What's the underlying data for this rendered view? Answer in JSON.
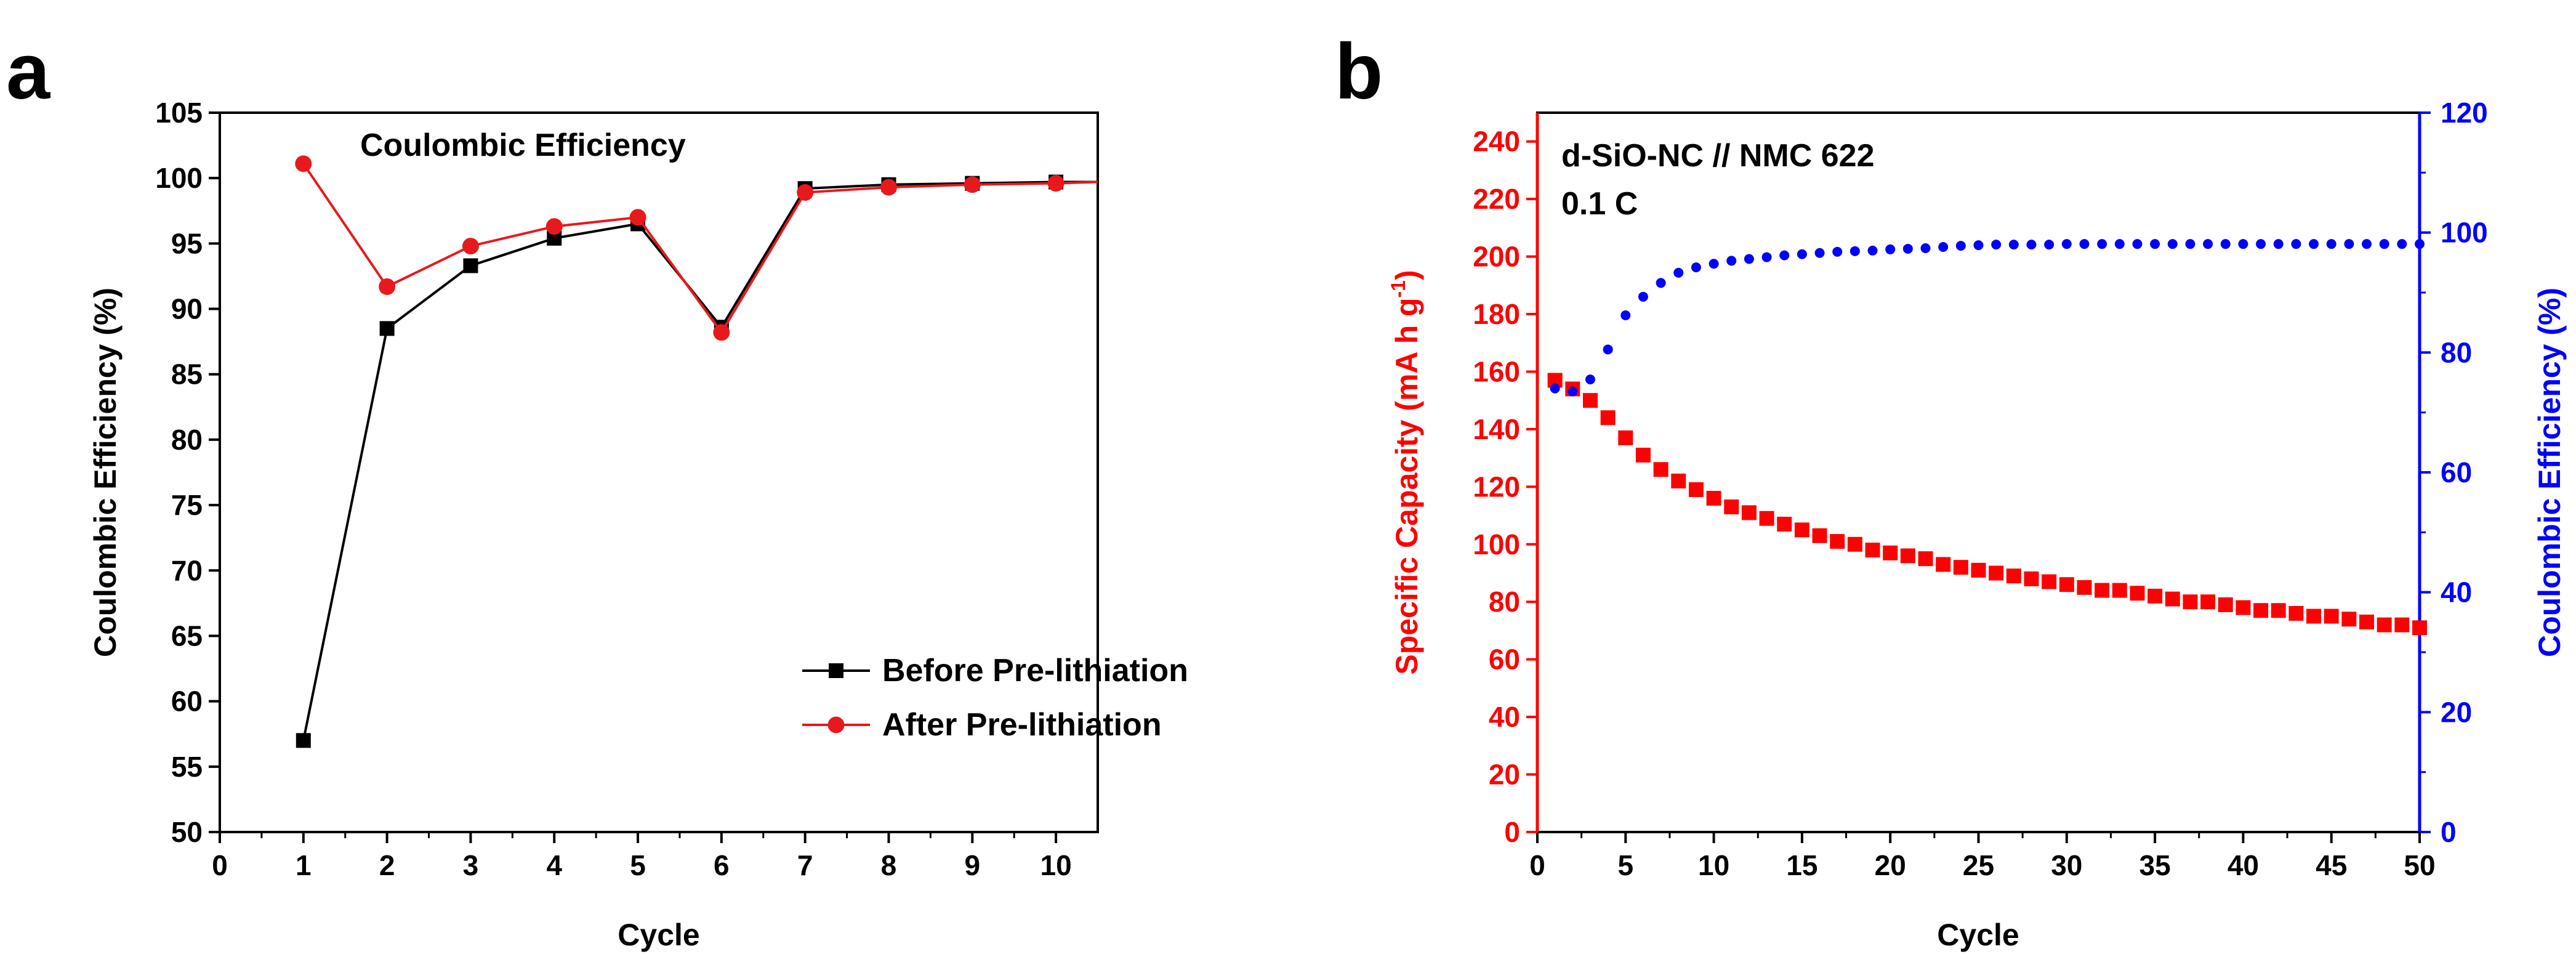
{
  "chart_data": [
    {
      "panel_label": "a",
      "type": "line",
      "annotation": "Coulombic Efficiency",
      "xlabel": "Cycle",
      "ylabel": "Coulombic Efficiency (%)",
      "xlim": [
        0,
        10.5
      ],
      "ylim": [
        50,
        105
      ],
      "xticks": [
        0,
        1,
        2,
        3,
        4,
        5,
        6,
        7,
        8,
        9,
        10
      ],
      "yticks": [
        50,
        55,
        60,
        65,
        70,
        75,
        80,
        85,
        90,
        95,
        100,
        105
      ],
      "legend_position": "bottom-right",
      "series": [
        {
          "name": "Before Pre-lithiation",
          "color": "#000000",
          "marker": "square",
          "x": [
            1,
            2,
            3,
            4,
            5,
            6,
            7,
            8,
            9,
            10,
            10.5
          ],
          "y": [
            57.0,
            88.5,
            93.3,
            95.4,
            96.5,
            88.6,
            99.2,
            99.5,
            99.6,
            99.7,
            99.7
          ]
        },
        {
          "name": "After Pre-lithiation",
          "color": "#e8191c",
          "marker": "circle",
          "x": [
            1,
            2,
            3,
            4,
            5,
            6,
            7,
            8,
            9,
            10,
            10.5
          ],
          "y": [
            101.1,
            91.7,
            94.8,
            96.3,
            97.0,
            88.2,
            98.9,
            99.3,
            99.5,
            99.6,
            99.7
          ]
        }
      ]
    },
    {
      "panel_label": "b",
      "type": "scatter",
      "annotation_lines": [
        "d-SiO-NC // NMC 622",
        "0.1 C"
      ],
      "xlabel": "Cycle",
      "ylabel_left": "Specific Capacity (mA h g",
      "ylabel_left_sup": "-1",
      "ylabel_left_close": ")",
      "ylabel_right": "Coulombic Efficiency (%)",
      "xlim": [
        0,
        50
      ],
      "ylim_left": [
        0,
        250
      ],
      "ylim_right": [
        0,
        120
      ],
      "xticks": [
        0,
        5,
        10,
        15,
        20,
        25,
        30,
        35,
        40,
        45,
        50
      ],
      "yticks_left": [
        0,
        20,
        40,
        60,
        80,
        100,
        120,
        140,
        160,
        180,
        200,
        220,
        240
      ],
      "yticks_right": [
        0,
        20,
        40,
        60,
        80,
        100,
        120
      ],
      "left_axis_color": "#ff0000",
      "right_axis_color": "#0000ff",
      "series": [
        {
          "name": "Specific Capacity",
          "axis": "left",
          "color": "#ff0000",
          "marker": "square",
          "x": [
            1,
            2,
            3,
            4,
            5,
            6,
            7,
            8,
            9,
            10,
            11,
            12,
            13,
            14,
            15,
            16,
            17,
            18,
            19,
            20,
            21,
            22,
            23,
            24,
            25,
            26,
            27,
            28,
            29,
            30,
            31,
            32,
            33,
            34,
            35,
            36,
            37,
            38,
            39,
            40,
            41,
            42,
            43,
            44,
            45,
            46,
            47,
            48,
            49,
            50
          ],
          "y": [
            157,
            154,
            150,
            144,
            137,
            131,
            126,
            122,
            119,
            116,
            113,
            111,
            109,
            107,
            105,
            103,
            101,
            100,
            98,
            97,
            96,
            95,
            93,
            92,
            91,
            90,
            89,
            88,
            87,
            86,
            85,
            84,
            84,
            83,
            82,
            81,
            80,
            80,
            79,
            78,
            77,
            77,
            76,
            75,
            75,
            74,
            73,
            72,
            72,
            71
          ]
        },
        {
          "name": "Coulombic Efficiency",
          "axis": "right",
          "color": "#0000ff",
          "marker": "circle",
          "x": [
            1,
            2,
            3,
            4,
            5,
            6,
            7,
            8,
            9,
            10,
            11,
            12,
            13,
            14,
            15,
            16,
            17,
            18,
            19,
            20,
            21,
            22,
            23,
            24,
            25,
            26,
            27,
            28,
            29,
            30,
            31,
            32,
            33,
            34,
            35,
            36,
            37,
            38,
            39,
            40,
            41,
            42,
            43,
            44,
            45,
            46,
            47,
            48,
            49,
            50
          ],
          "y": [
            74.0,
            73.5,
            75.5,
            80.5,
            86.2,
            89.3,
            91.6,
            93.3,
            94.2,
            94.8,
            95.3,
            95.6,
            95.9,
            96.2,
            96.4,
            96.6,
            96.8,
            96.9,
            97.0,
            97.2,
            97.3,
            97.4,
            97.6,
            97.8,
            97.9,
            98.0,
            98.0,
            98.0,
            98.0,
            98.1,
            98.1,
            98.1,
            98.1,
            98.1,
            98.1,
            98.1,
            98.1,
            98.1,
            98.1,
            98.1,
            98.1,
            98.1,
            98.1,
            98.1,
            98.1,
            98.1,
            98.1,
            98.1,
            98.1,
            98.1
          ]
        }
      ]
    }
  ]
}
